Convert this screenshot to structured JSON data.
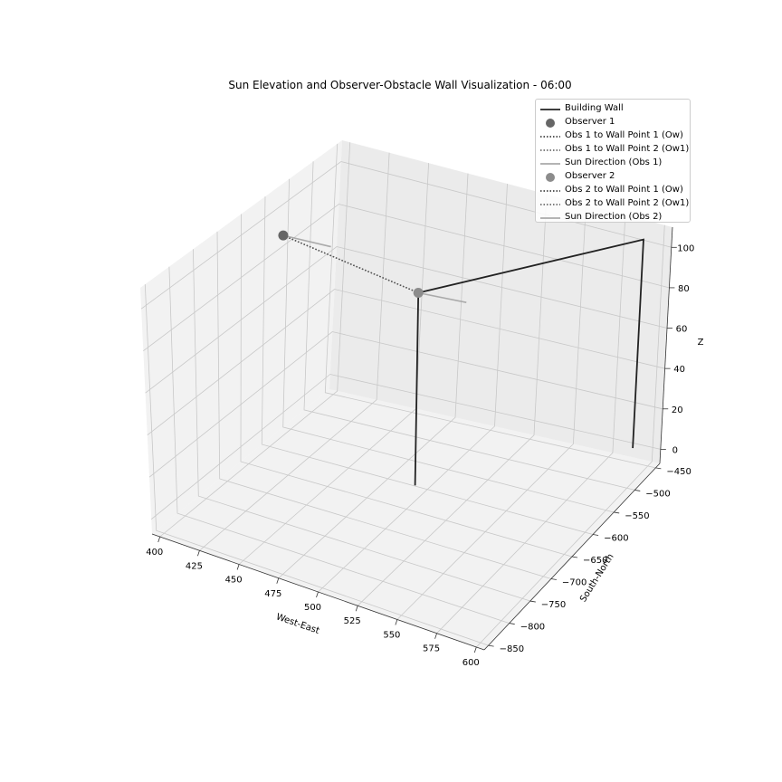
{
  "chart_data": {
    "type": "3d-line-scatter",
    "title": "Sun Elevation and Observer-Obstacle Wall Visualization - 06:00",
    "xlabel": "West-East",
    "ylabel": "South-North",
    "zlabel": "Z",
    "xlim": [
      395,
      605
    ],
    "ylim": [
      -860,
      -440
    ],
    "zlim": [
      -7,
      110
    ],
    "x_ticks": [
      "400",
      "425",
      "450",
      "475",
      "500",
      "525",
      "550",
      "575",
      "600"
    ],
    "y_ticks": [
      "−850",
      "−800",
      "−750",
      "−700",
      "−650",
      "−600",
      "−550",
      "−500",
      "−450"
    ],
    "z_ticks": [
      "0",
      "20",
      "40",
      "60",
      "80",
      "100"
    ],
    "x_tick_values": [
      400,
      425,
      450,
      475,
      500,
      525,
      550,
      575,
      600
    ],
    "y_tick_values": [
      -850,
      -800,
      -750,
      -700,
      -650,
      -600,
      -550,
      -500,
      -450
    ],
    "z_tick_values": [
      0,
      20,
      40,
      60,
      80,
      100
    ],
    "grid": true,
    "legend_position": "top-right",
    "wall": {
      "name": "Building Wall",
      "color": "#222222",
      "points": [
        [
          500,
          -630,
          0
        ],
        [
          500,
          -630,
          85
        ],
        [
          590,
          -450,
          102
        ],
        [
          590,
          -450,
          0
        ]
      ]
    },
    "observers": [
      {
        "name": "Observer 1",
        "color": "#666666",
        "position": [
          395,
          -560,
          85
        ],
        "ow_label": "Obs 1 to Wall Point 1 (Ow)",
        "ow1_label": "Obs 1 to Wall Point 2 (Ow1)",
        "sun_label": "Sun Direction (Obs 1)",
        "ow_point": [
          500,
          -630,
          85
        ],
        "ow1_point": [
          500,
          -630,
          85
        ],
        "sun_end": [
          427,
          -567,
          86
        ]
      },
      {
        "name": "Observer 2",
        "color": "#8c8c8c",
        "position": [
          500,
          -630,
          85
        ],
        "ow_label": "Obs 2 to Wall Point 1 (Ow)",
        "ow1_label": "Obs 2 to Wall Point 2 (Ow1)",
        "sun_label": "Sun Direction (Obs 2)",
        "ow_point": [
          500,
          -630,
          85
        ],
        "ow1_point": [
          500,
          -630,
          85
        ],
        "sun_end": [
          532,
          -637,
          86
        ]
      }
    ],
    "legend": [
      {
        "label": "Building Wall",
        "kind": "solid",
        "color": "#222222"
      },
      {
        "label": "Observer 1",
        "kind": "marker",
        "color": "#666666"
      },
      {
        "label": "Obs 1 to Wall Point 1 (Ow)",
        "kind": "dotted",
        "color": "#222222"
      },
      {
        "label": "Obs 1 to Wall Point 2 (Ow1)",
        "kind": "dotted",
        "color": "#555555"
      },
      {
        "label": "Sun Direction (Obs 1)",
        "kind": "solid",
        "color": "#aaaaaa"
      },
      {
        "label": "Observer 2",
        "kind": "marker",
        "color": "#8c8c8c"
      },
      {
        "label": "Obs 2 to Wall Point 1 (Ow)",
        "kind": "dotted",
        "color": "#222222"
      },
      {
        "label": "Obs 2 to Wall Point 2 (Ow1)",
        "kind": "dotted",
        "color": "#555555"
      },
      {
        "label": "Sun Direction (Obs 2)",
        "kind": "solid",
        "color": "#aaaaaa"
      }
    ]
  }
}
